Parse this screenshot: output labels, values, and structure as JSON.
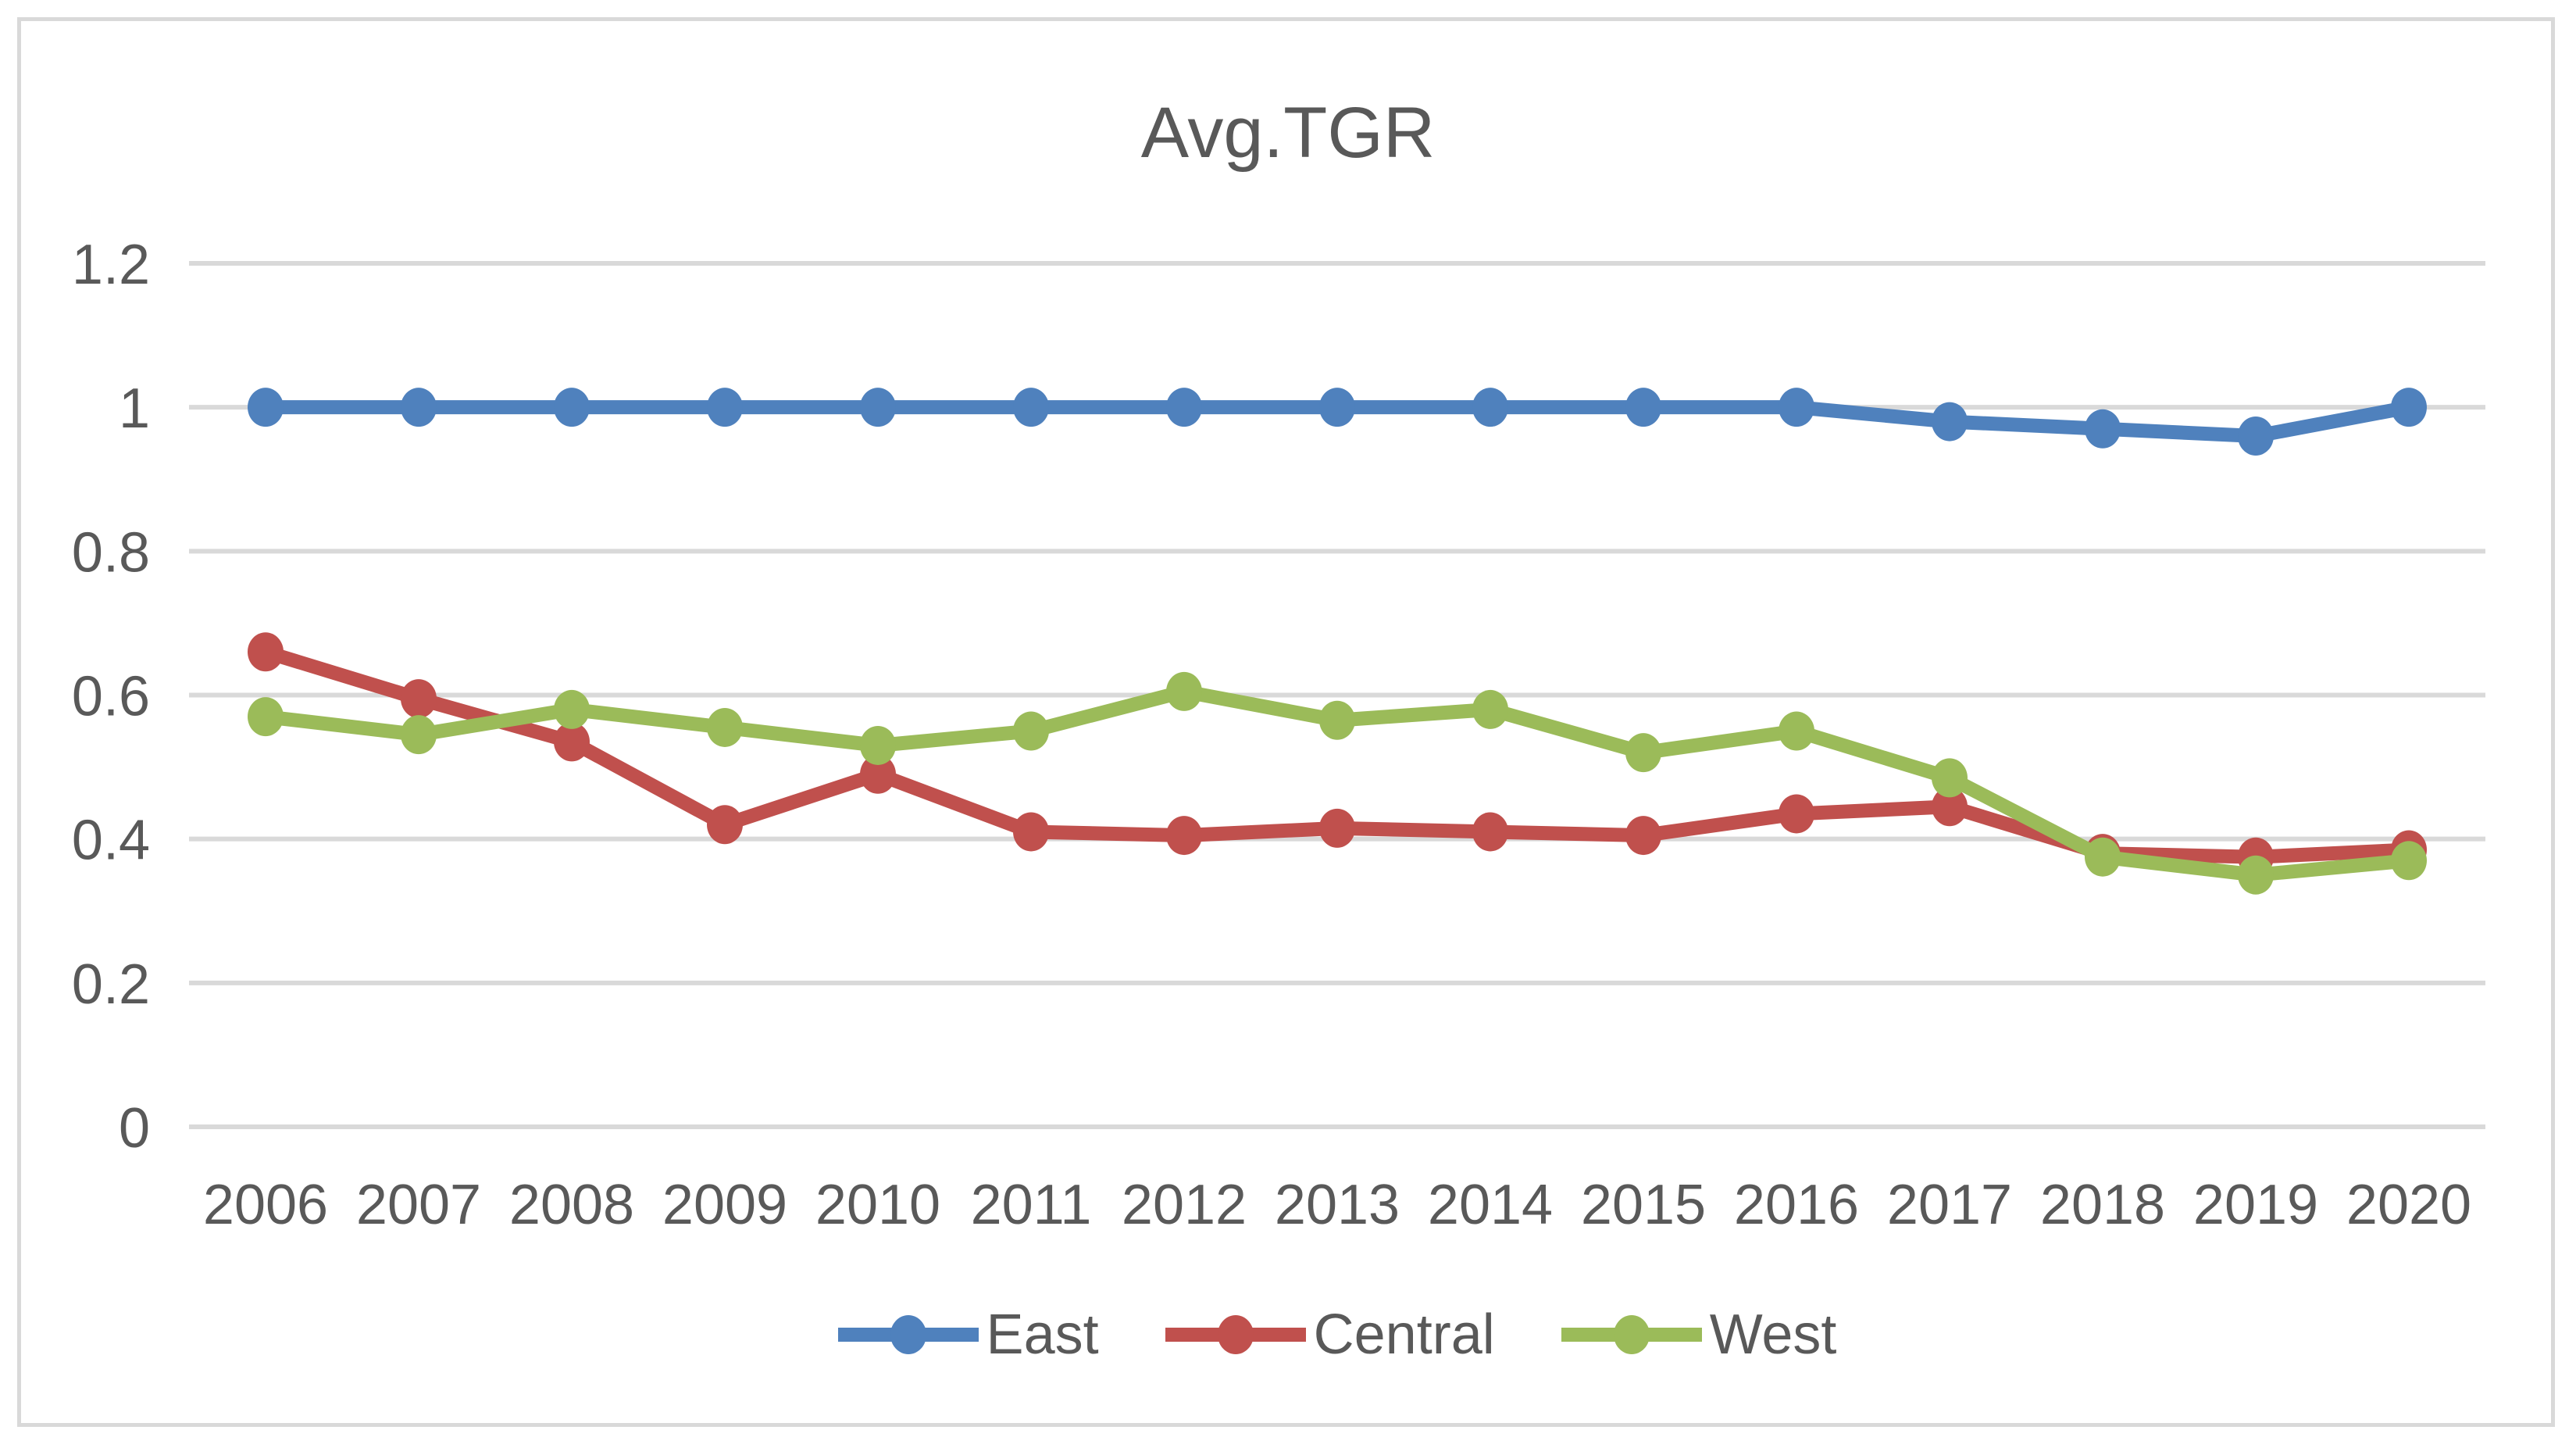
{
  "chart_data": {
    "type": "line",
    "title": "Avg.TGR",
    "xlabel": "",
    "ylabel": "",
    "categories": [
      "2006",
      "2007",
      "2008",
      "2009",
      "2010",
      "2011",
      "2012",
      "2013",
      "2014",
      "2015",
      "2016",
      "2017",
      "2018",
      "2019",
      "2020"
    ],
    "series": [
      {
        "name": "East",
        "color": "#4F81BD",
        "values": [
          1.0,
          1.0,
          1.0,
          1.0,
          1.0,
          1.0,
          1.0,
          1.0,
          1.0,
          1.0,
          1.0,
          0.98,
          0.97,
          0.96,
          1.0
        ]
      },
      {
        "name": "Central",
        "color": "#C0504D",
        "values": [
          0.66,
          0.595,
          0.535,
          0.42,
          0.49,
          0.41,
          0.405,
          0.415,
          0.41,
          0.405,
          0.435,
          0.445,
          0.38,
          0.375,
          0.385
        ]
      },
      {
        "name": "West",
        "color": "#9BBB59",
        "values": [
          0.57,
          0.545,
          0.58,
          0.555,
          0.53,
          0.55,
          0.605,
          0.565,
          0.58,
          0.52,
          0.55,
          0.485,
          0.375,
          0.35,
          0.37
        ]
      }
    ],
    "ylim": [
      0,
      1.2
    ],
    "ytick_labels": [
      "0",
      "0.2",
      "0.4",
      "0.6",
      "0.8",
      "1",
      "1.2"
    ],
    "grid": true,
    "legend_position": "bottom",
    "axis_text_color": "#595959",
    "gridline_color": "#D9D9D9"
  }
}
